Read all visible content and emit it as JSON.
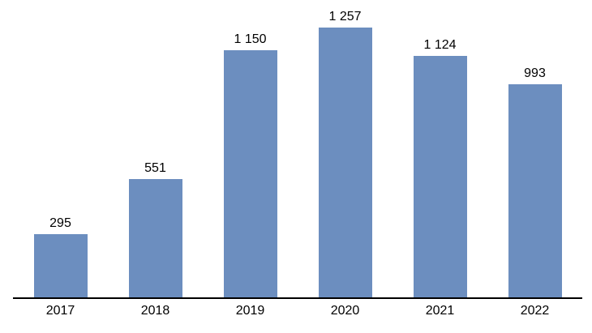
{
  "chart_data": {
    "type": "bar",
    "categories": [
      "2017",
      "2018",
      "2019",
      "2020",
      "2021",
      "2022"
    ],
    "values": [
      295,
      551,
      1150,
      1257,
      1124,
      993
    ],
    "value_labels": [
      "295",
      "551",
      "1 150",
      "1 257",
      "1 124",
      "993"
    ],
    "xlabel": "",
    "ylabel": "",
    "ylim": [
      0,
      1257
    ],
    "bar_color": "#6c8ebf",
    "axis_line_color": "#000000",
    "text_color": "#000000",
    "grid": false,
    "legend": false,
    "data_labels_position": "above-bar",
    "thousands_separator": " "
  }
}
